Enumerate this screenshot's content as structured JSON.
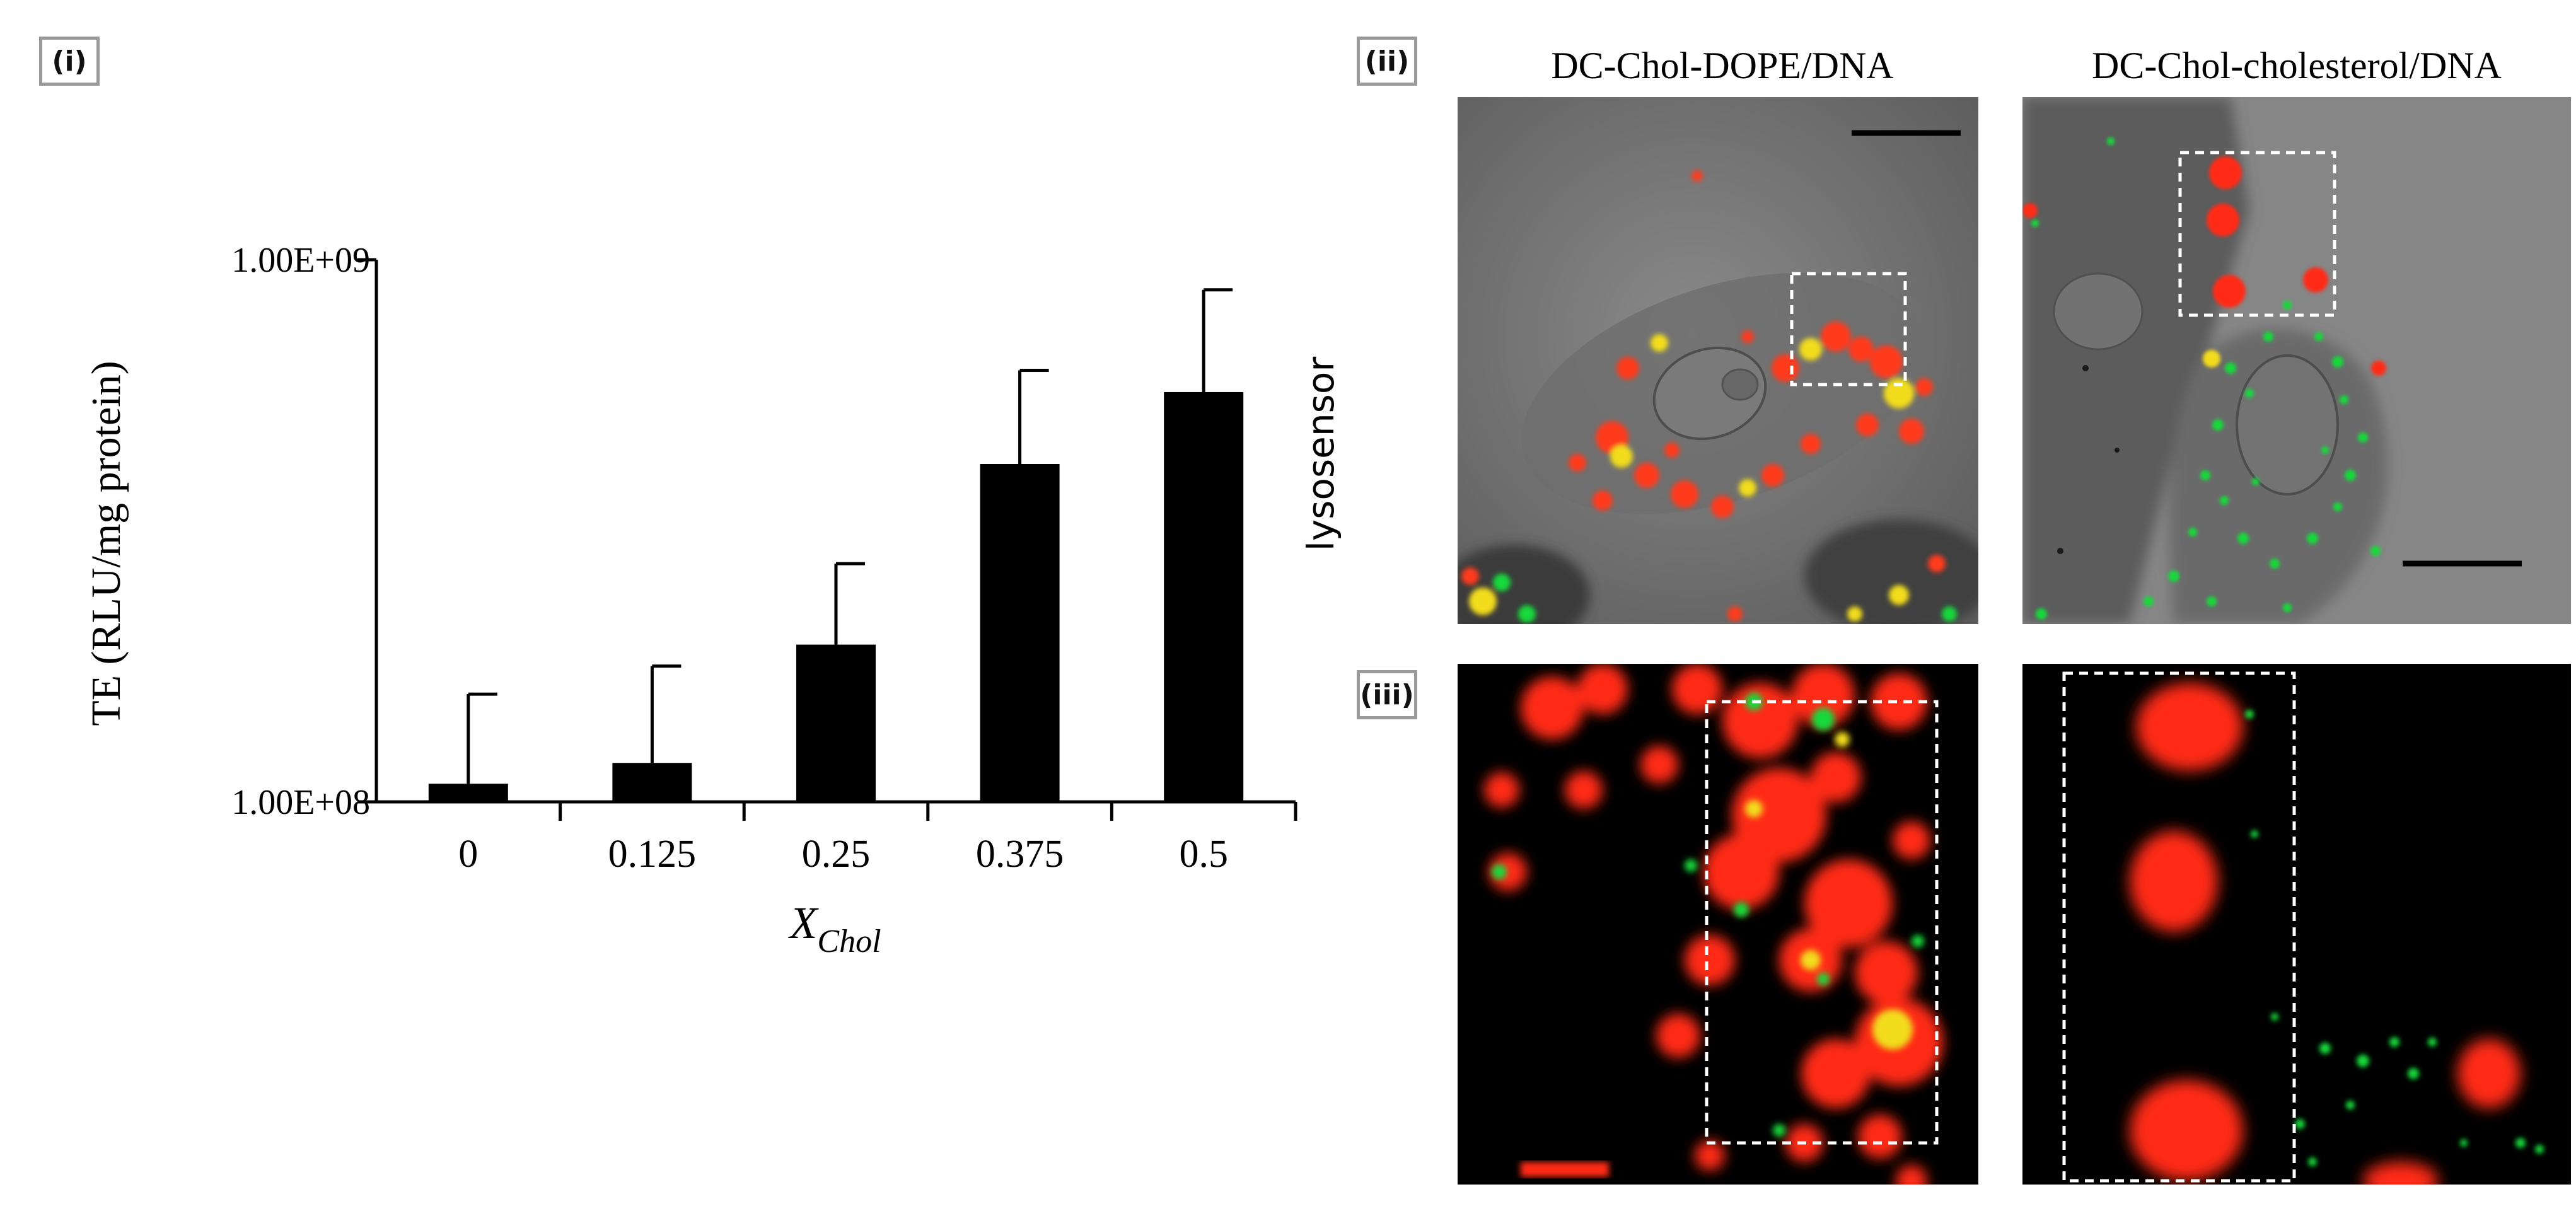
{
  "panels": {
    "i": "(i)",
    "ii": "(ii)",
    "iii": "(iii)"
  },
  "chart_data": {
    "type": "bar",
    "title": "",
    "ylabel": "TE (RLU/mg protein)",
    "xlabel_main": "X",
    "xlabel_sub": "Chol",
    "yscale": "log",
    "ylim": [
      100000000,
      1000000000
    ],
    "ytick_labels": [
      "1.00E+08",
      "1.00E+09"
    ],
    "ytick_values": [
      100000000,
      1000000000
    ],
    "categories": [
      "0",
      "0.125",
      "0.25",
      "0.375",
      "0.5"
    ],
    "values": [
      108000000,
      118000000,
      195000000,
      420000000,
      570000000
    ],
    "errors_upper": [
      158000000,
      178000000,
      275000000,
      625000000,
      880000000
    ]
  },
  "microscopy": {
    "columns": [
      "DC-Chol-DOPE/DNA",
      "DC-Chol-cholesterol/DNA"
    ],
    "row_label": "lysosensor"
  },
  "colors": {
    "bar": "#000000",
    "lysosome": "#19d93a",
    "dna": "#ff2a14",
    "overlay": "#f0e21a"
  }
}
